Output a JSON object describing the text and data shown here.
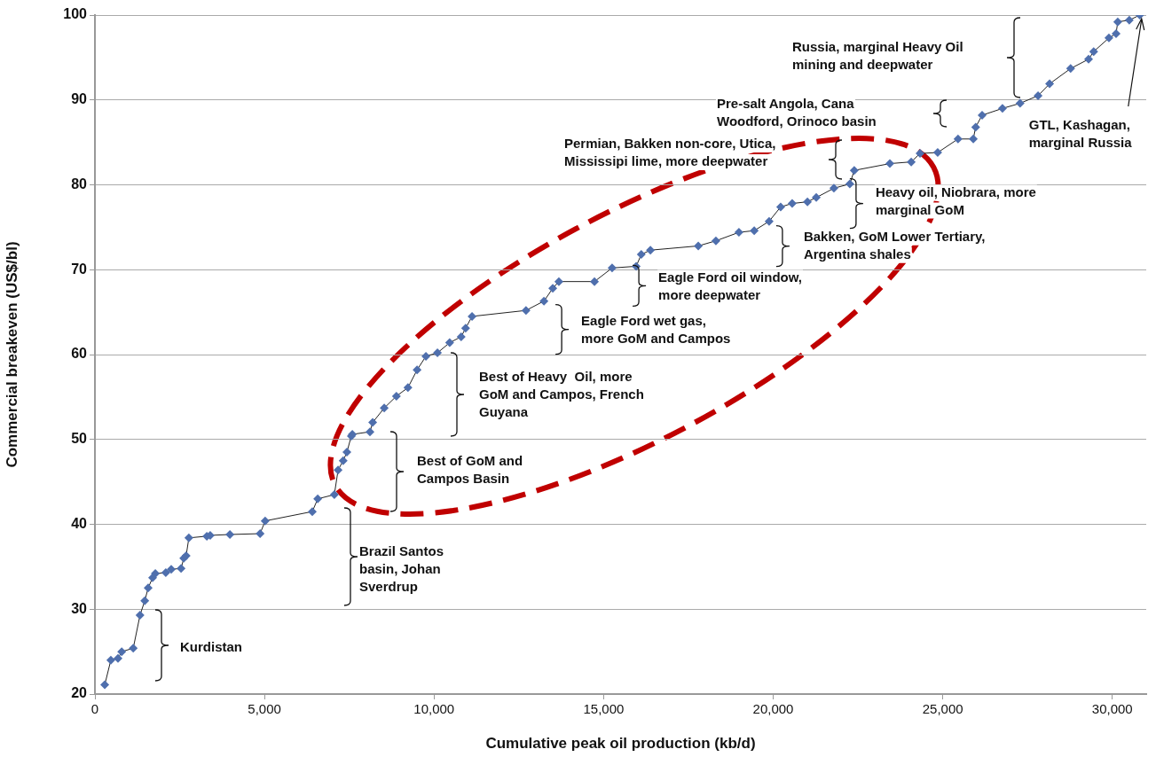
{
  "chart_data": {
    "type": "line",
    "xlabel": "Cumulative peak oil production (kb/d)",
    "ylabel": "Commercial breakeven (US$/bl)",
    "x": [
      290,
      470,
      680,
      790,
      1130,
      1330,
      1470,
      1570,
      1700,
      1780,
      2090,
      2250,
      2540,
      2620,
      2690,
      2770,
      3300,
      3400,
      3980,
      4870,
      5020,
      6410,
      6570,
      7060,
      7170,
      7320,
      7430,
      7560,
      7590,
      8110,
      8190,
      8530,
      8890,
      9230,
      9500,
      9760,
      10100,
      10460,
      10800,
      10930,
      11120,
      12710,
      13240,
      13500,
      13680,
      14730,
      15250,
      15960,
      16110,
      16380,
      17790,
      18310,
      18990,
      19440,
      19880,
      20220,
      20560,
      21010,
      21270,
      21790,
      22260,
      22390,
      23440,
      24070,
      24330,
      24850,
      25450,
      25900,
      25970,
      26160,
      26760,
      27280,
      27810,
      28150,
      28770,
      29300,
      29450,
      29900,
      30110,
      30160,
      30500,
      30810
    ],
    "series": [
      {
        "color": "#4f6fad",
        "values": [
          21.1,
          24.0,
          24.2,
          25.0,
          25.4,
          29.3,
          31.0,
          32.5,
          33.7,
          34.2,
          34.3,
          34.7,
          34.8,
          36.0,
          36.3,
          38.4,
          38.6,
          38.7,
          38.8,
          38.9,
          40.4,
          41.5,
          43.0,
          43.5,
          46.4,
          47.5,
          48.5,
          50.4,
          50.6,
          50.9,
          52.0,
          53.7,
          55.1,
          56.1,
          58.2,
          59.8,
          60.2,
          61.4,
          62.1,
          63.1,
          64.5,
          65.2,
          66.3,
          67.8,
          68.6,
          68.6,
          70.2,
          70.4,
          71.8,
          72.3,
          72.8,
          73.4,
          74.4,
          74.6,
          75.7,
          77.4,
          77.8,
          78.0,
          78.5,
          79.6,
          80.1,
          81.7,
          82.5,
          82.7,
          83.7,
          83.8,
          85.4,
          85.4,
          86.8,
          88.2,
          89.0,
          89.6,
          90.5,
          91.9,
          93.7,
          94.8,
          95.7,
          97.3,
          97.8,
          99.2,
          99.4,
          100
        ]
      }
    ],
    "xlim": [
      0,
      31000
    ],
    "xticks": [
      0,
      {
        "value": 5000,
        "label": "5,000"
      },
      {
        "value": 10000,
        "label": "10,000"
      },
      {
        "value": 15000,
        "label": "15,000"
      },
      {
        "value": 20000,
        "label": "20,000"
      },
      {
        "value": 25000,
        "label": "25,000"
      },
      {
        "value": 30000,
        "label": "30,000"
      }
    ],
    "ylim": [
      20,
      100
    ],
    "yticks": [
      20,
      30,
      40,
      50,
      60,
      70,
      80,
      90,
      100
    ],
    "grid": "y",
    "marker": "diamond",
    "line_style": "solid",
    "annotations": [
      "Kurdistan",
      "Brazil Santos\nbasin, Johan\nSverdrup",
      "Best of GoM and\nCampos Basin",
      "Best of Heavy  Oil, more\nGoM and Campos, French\nGuyana",
      {
        "text": "Eagle Ford wet gas,\nmore GoM and Campos",
        "x": 13240,
        "y": 66.3
      },
      {
        "text": "Eagle Ford oil window,\nmore deepwater",
        "x": 15960,
        "y": 70.4
      },
      {
        "text": "Bakken, GoM Lower Tertiary,\nArgentina shales",
        "x": 19880,
        "y": 75.7
      },
      {
        "text": "Heavy oil, Niobrara, more\nmarginal GoM",
        "x": 22260,
        "y": 80.1
      },
      "Permian, Bakken non-core, Utica,\nMississipi lime, more deepwater",
      "Pre-salt Angola, Cana\nWoodford, Orinoco basin",
      "Russia, marginal Heavy Oil\nmining and deepwater",
      {
        "text": "GTL, Kashagan,\nmarginal Russia",
        "x": 30810,
        "y": 100
      }
    ]
  }
}
